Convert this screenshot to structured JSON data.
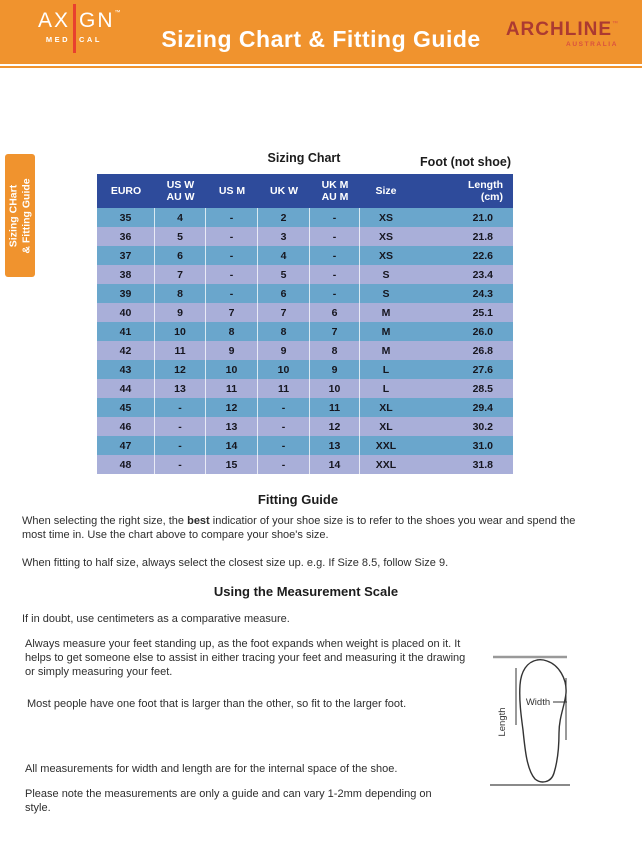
{
  "header": {
    "logo": {
      "ax": "AX",
      "gn": "GN",
      "tm": "™",
      "med": "MED",
      "cal": "CAL"
    },
    "title": "Sizing Chart & Fitting Guide",
    "brand": {
      "name": "ARCHLINE",
      "tm": "™",
      "sub": "AUSTRALIA"
    }
  },
  "side_tab": {
    "line1": "Sizing CHart",
    "line2": "& Fitting Guide"
  },
  "sizing_chart": {
    "title": "Sizing Chart",
    "foot_note": "Foot (not shoe)",
    "columns": [
      {
        "top": "EURO",
        "bottom": ""
      },
      {
        "top": "US W",
        "bottom": "AU W"
      },
      {
        "top": "US M",
        "bottom": ""
      },
      {
        "top": "UK W",
        "bottom": ""
      },
      {
        "top": "UK M",
        "bottom": "AU M"
      },
      {
        "top": "Size",
        "bottom": ""
      },
      {
        "top": "Length",
        "bottom": "(cm)"
      }
    ],
    "rows": [
      [
        "35",
        "4",
        "-",
        "2",
        "-",
        "XS",
        "21.0"
      ],
      [
        "36",
        "5",
        "-",
        "3",
        "-",
        "XS",
        "21.8"
      ],
      [
        "37",
        "6",
        "-",
        "4",
        "-",
        "XS",
        "22.6"
      ],
      [
        "38",
        "7",
        "-",
        "5",
        "-",
        "S",
        "23.4"
      ],
      [
        "39",
        "8",
        "-",
        "6",
        "-",
        "S",
        "24.3"
      ],
      [
        "40",
        "9",
        "7",
        "7",
        "6",
        "M",
        "25.1"
      ],
      [
        "41",
        "10",
        "8",
        "8",
        "7",
        "M",
        "26.0"
      ],
      [
        "42",
        "11",
        "9",
        "9",
        "8",
        "M",
        "26.8"
      ],
      [
        "43",
        "12",
        "10",
        "10",
        "9",
        "L",
        "27.6"
      ],
      [
        "44",
        "13",
        "11",
        "11",
        "10",
        "L",
        "28.5"
      ],
      [
        "45",
        "-",
        "12",
        "-",
        "11",
        "XL",
        "29.4"
      ],
      [
        "46",
        "-",
        "13",
        "-",
        "12",
        "XL",
        "30.2"
      ],
      [
        "47",
        "-",
        "14",
        "-",
        "13",
        "XXL",
        "31.0"
      ],
      [
        "48",
        "-",
        "15",
        "-",
        "14",
        "XXL",
        "31.8"
      ]
    ]
  },
  "fitting_guide": {
    "heading": "Fitting Guide",
    "p1_pre": "When selecting the right size, the ",
    "p1_bold": "best",
    "p1_post": " indicatior of your shoe size is to refer to the shoes you wear and spend the most time in. Use the chart above to compare your shoe's size.",
    "p2": "When fitting to half size, always select the closest size up. e.g. If Size 8.5, follow Size 9."
  },
  "measurement": {
    "heading": "Using the Measurement Scale",
    "p1": "If in doubt, use centimeters as a comparative measure.",
    "p2": "Always measure your feet standing up, as the foot expands when weight is placed on it. It helps to get someone else to assist in either tracing your feet and measuring it the drawing or simply measuring your feet.",
    "p3": "Most people have one foot that is larger than the other, so fit to the larger foot.",
    "p4": "All measurements for width and length are for the internal space of the shoe.",
    "p5": "Please note the measurements are only a guide and can vary 1-2mm depending on style.",
    "diagram": {
      "width_label": "Width",
      "length_label": "Length"
    }
  },
  "colors": {
    "orange": "#F0932E",
    "red_accent": "#E8402F",
    "brand_red": "#AC3A31",
    "brand_sub_red": "#D9503F",
    "table_header_navy": "#2E4B9B",
    "row_blue": "#6AA6CC",
    "row_lavender": "#A9AFD9"
  }
}
